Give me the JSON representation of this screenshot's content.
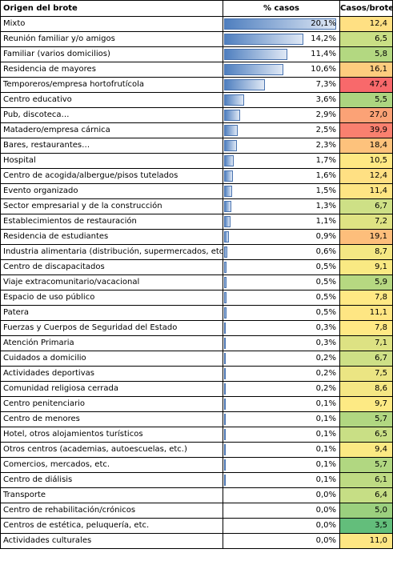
{
  "headers": {
    "origen": "Origen del brote",
    "pct": "% casos",
    "cpb": "Casos/brote"
  },
  "rows": [
    {
      "origen": "Mixto",
      "pct": "20,1%",
      "pct_value": 20.1,
      "cpb": "12,4",
      "cpb_color": "#ffe083"
    },
    {
      "origen": "Reunión familiar y/o amigos",
      "pct": "14,2%",
      "pct_value": 14.2,
      "cpb": "6,5",
      "cpb_color": "#c9df85"
    },
    {
      "origen": "Familiar (varios domicilios)",
      "pct": "11,4%",
      "pct_value": 11.4,
      "cpb": "5,8",
      "cpb_color": "#b3d881"
    },
    {
      "origen": "Residencia de mayores",
      "pct": "10,6%",
      "pct_value": 10.6,
      "cpb": "16,1",
      "cpb_color": "#fdcc7e"
    },
    {
      "origen": "Temporeros/empresa hortofrutícola",
      "pct": "7,3%",
      "pct_value": 7.3,
      "cpb": "47,4",
      "cpb_color": "#f8696b"
    },
    {
      "origen": "Centro educativo",
      "pct": "3,6%",
      "pct_value": 3.6,
      "cpb": "5,5",
      "cpb_color": "#acd580"
    },
    {
      "origen": "Pub, discoteca…",
      "pct": "2,9%",
      "pct_value": 2.9,
      "cpb": "27,0",
      "cpb_color": "#fba276"
    },
    {
      "origen": "Matadero/empresa cárnica",
      "pct": "2,5%",
      "pct_value": 2.5,
      "cpb": "39,9",
      "cpb_color": "#f9806f"
    },
    {
      "origen": "Bares, restaurantes…",
      "pct": "2,3%",
      "pct_value": 2.3,
      "cpb": "18,4",
      "cpb_color": "#fdc27c"
    },
    {
      "origen": "Hospital",
      "pct": "1,7%",
      "pct_value": 1.7,
      "cpb": "10,5",
      "cpb_color": "#fee883"
    },
    {
      "origen": "Centro de acogida/albergue/pisos tutelados",
      "pct": "1,6%",
      "pct_value": 1.6,
      "cpb": "12,4",
      "cpb_color": "#ffe083"
    },
    {
      "origen": "Evento organizado",
      "pct": "1,5%",
      "pct_value": 1.5,
      "cpb": "11,4",
      "cpb_color": "#fee583"
    },
    {
      "origen": "Sector empresarial y de la construcción",
      "pct": "1,3%",
      "pct_value": 1.3,
      "cpb": "6,7",
      "cpb_color": "#cee086"
    },
    {
      "origen": "Establecimientos de restauración",
      "pct": "1,1%",
      "pct_value": 1.1,
      "cpb": "7,2",
      "cpb_color": "#dfe383"
    },
    {
      "origen": "Residencia de estudiantes",
      "pct": "0,9%",
      "pct_value": 0.9,
      "cpb": "19,1",
      "cpb_color": "#fdbe7b"
    },
    {
      "origen": "Industria alimentaria (distribución, supermercados, etc.)",
      "pct": "0,6%",
      "pct_value": 0.6,
      "cpb": "8,7",
      "cpb_color": "#f4e783"
    },
    {
      "origen": "Centro de discapacitados",
      "pct": "0,5%",
      "pct_value": 0.5,
      "cpb": "9,1",
      "cpb_color": "#f9e983"
    },
    {
      "origen": "Viaje extracomunitario/vacacional",
      "pct": "0,5%",
      "pct_value": 0.5,
      "cpb": "5,9",
      "cpb_color": "#b6d881"
    },
    {
      "origen": "Espacio de uso público",
      "pct": "0,5%",
      "pct_value": 0.5,
      "cpb": "7,8",
      "cpb_color": "#ffe984"
    },
    {
      "origen": "Patera",
      "pct": "0,5%",
      "pct_value": 0.5,
      "cpb": "11,1",
      "cpb_color": "#fee683"
    },
    {
      "origen": "Fuerzas y Cuerpos de Seguridad del Estado",
      "pct": "0,3%",
      "pct_value": 0.3,
      "cpb": "7,8",
      "cpb_color": "#ffe984"
    },
    {
      "origen": "Atención Primaria",
      "pct": "0,3%",
      "pct_value": 0.3,
      "cpb": "7,1",
      "cpb_color": "#dde283"
    },
    {
      "origen": "Cuidados a domicilio",
      "pct": "0,2%",
      "pct_value": 0.2,
      "cpb": "6,7",
      "cpb_color": "#cee086"
    },
    {
      "origen": "Actividades deportivas",
      "pct": "0,2%",
      "pct_value": 0.2,
      "cpb": "7,5",
      "cpb_color": "#ebe583"
    },
    {
      "origen": "Comunidad religiosa cerrada",
      "pct": "0,2%",
      "pct_value": 0.2,
      "cpb": "8,6",
      "cpb_color": "#f5e784"
    },
    {
      "origen": "Centro penitenciario",
      "pct": "0,1%",
      "pct_value": 0.1,
      "cpb": "9,7",
      "cpb_color": "#fdea84"
    },
    {
      "origen": "Centro de menores",
      "pct": "0,1%",
      "pct_value": 0.1,
      "cpb": "5,7",
      "cpb_color": "#b1d781"
    },
    {
      "origen": "Hotel, otros alojamientos turísticos",
      "pct": "0,1%",
      "pct_value": 0.1,
      "cpb": "6,5",
      "cpb_color": "#c9df85"
    },
    {
      "origen": "Otros centros (academias, autoescuelas, etc.)",
      "pct": "0,1%",
      "pct_value": 0.1,
      "cpb": "9,4",
      "cpb_color": "#fbe983"
    },
    {
      "origen": "Comercios, mercados, etc.",
      "pct": "0,1%",
      "pct_value": 0.1,
      "cpb": "5,7",
      "cpb_color": "#b1d781"
    },
    {
      "origen": "Centro de diálisis",
      "pct": "0,1%",
      "pct_value": 0.1,
      "cpb": "6,1",
      "cpb_color": "#bedb83"
    },
    {
      "origen": "Transporte",
      "pct": "0,0%",
      "pct_value": 0.0,
      "cpb": "6,4",
      "cpb_color": "#c6de85"
    },
    {
      "origen": "Centro de rehabilitación/crónicos",
      "pct": "0,0%",
      "pct_value": 0.0,
      "cpb": "5,0",
      "cpb_color": "#9bd07e"
    },
    {
      "origen": "Centros de estética, peluquería, etc.",
      "pct": "0,0%",
      "pct_value": 0.0,
      "cpb": "3,5",
      "cpb_color": "#63be7b"
    },
    {
      "origen": "Actividades culturales",
      "pct": "0,0%",
      "pct_value": 0.0,
      "cpb": "11,0",
      "cpb_color": "#fee683"
    }
  ]
}
